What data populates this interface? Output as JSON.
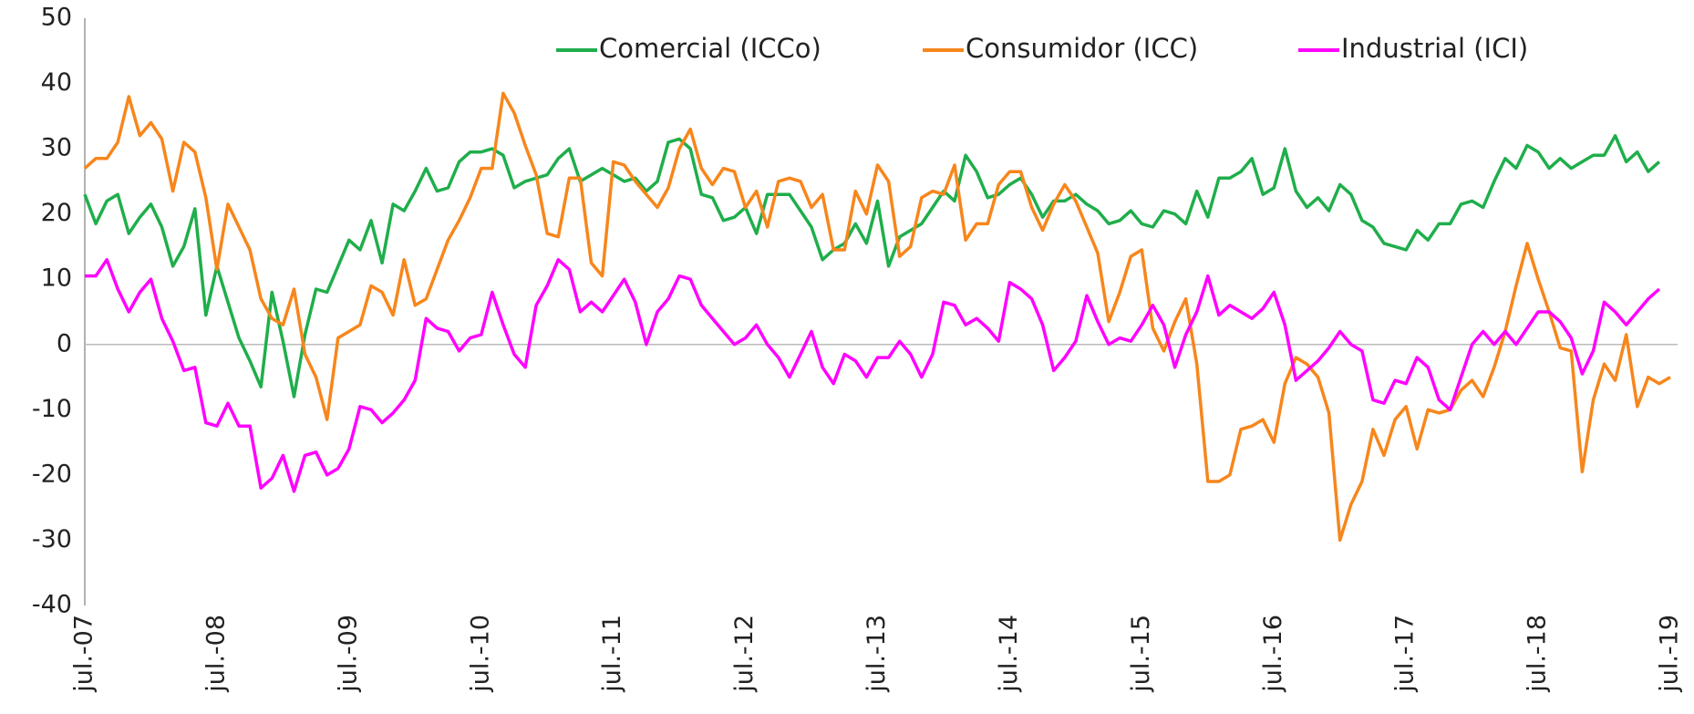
{
  "chart_data": {
    "type": "line",
    "categories": [
      "jul.-07",
      null,
      null,
      null,
      null,
      null,
      null,
      null,
      null,
      null,
      null,
      null,
      "jul.-08",
      null,
      null,
      null,
      null,
      null,
      null,
      null,
      null,
      null,
      null,
      null,
      "jul.-09",
      null,
      null,
      null,
      null,
      null,
      null,
      null,
      null,
      null,
      null,
      null,
      "jul.-10",
      null,
      null,
      null,
      null,
      null,
      null,
      null,
      null,
      null,
      null,
      null,
      "jul.-11",
      null,
      null,
      null,
      null,
      null,
      null,
      null,
      null,
      null,
      null,
      null,
      "jul.-12",
      null,
      null,
      null,
      null,
      null,
      null,
      null,
      null,
      null,
      null,
      null,
      "jul.-13",
      null,
      null,
      null,
      null,
      null,
      null,
      null,
      null,
      null,
      null,
      null,
      "jul.-14",
      null,
      null,
      null,
      null,
      null,
      null,
      null,
      null,
      null,
      null,
      null,
      "jul.-15",
      null,
      null,
      null,
      null,
      null,
      null,
      null,
      null,
      null,
      null,
      null,
      "jul.-16",
      null,
      null,
      null,
      null,
      null,
      null,
      null,
      null,
      null,
      null,
      null,
      "jul.-17",
      null,
      null,
      null,
      null,
      null,
      null,
      null,
      null,
      null,
      null,
      null,
      "jul.-18",
      null,
      null,
      null,
      null,
      null,
      null,
      null,
      null,
      null,
      null,
      null,
      "jul.-19"
    ],
    "series": [
      {
        "name": "Comercial (ICCo)",
        "color": "#1fae4b",
        "values": [
          23,
          18.5,
          22,
          23,
          17,
          19.5,
          21.5,
          18,
          12,
          15,
          20.8,
          4.5,
          12,
          6.5,
          1,
          -2.5,
          -6.5,
          8,
          0.5,
          -8,
          1.5,
          8.5,
          8,
          12,
          16,
          14.5,
          19,
          12.5,
          21.5,
          20.5,
          23.5,
          27,
          23.5,
          24,
          28,
          29.5,
          29.5,
          30,
          29,
          24,
          25,
          25.5,
          26,
          28.5,
          30,
          25,
          26,
          27,
          26,
          25,
          25.5,
          23.5,
          25,
          31,
          31.5,
          30,
          23,
          22.5,
          19,
          19.5,
          21,
          17,
          23,
          23,
          23,
          20.5,
          18,
          13,
          14.5,
          15.5,
          18.5,
          15.5,
          22,
          12,
          16.5,
          17.5,
          18.5,
          21,
          23.5,
          22,
          29,
          26.5,
          22.5,
          23,
          24.5,
          25.5,
          23,
          19.5,
          22,
          22,
          23,
          21.5,
          20.5,
          18.5,
          19,
          20.5,
          18.5,
          18,
          20.5,
          20,
          18.5,
          23.5,
          19.5,
          25.5,
          25.5,
          26.5,
          28.5,
          23,
          24,
          30,
          23.5,
          21,
          22.5,
          20.5,
          24.5,
          23,
          19,
          18,
          15.5,
          15,
          14.5,
          17.5,
          16,
          18.5,
          18.5,
          21.5,
          22,
          21,
          25,
          28.5,
          27,
          30.5,
          29.5,
          27,
          28.5,
          27,
          28,
          29,
          29,
          32,
          28,
          29.5,
          26.5,
          28,
          null
        ]
      },
      {
        "name": "Consumidor (ICC)",
        "color": "#f7861c",
        "values": [
          27,
          28.5,
          28.5,
          31,
          38,
          32,
          34,
          31.5,
          23.5,
          31,
          29.5,
          22.5,
          11.5,
          21.5,
          18,
          14.5,
          7,
          4,
          3,
          8.5,
          -1.5,
          -5,
          -11.5,
          1,
          2,
          3,
          9,
          8,
          4.5,
          13,
          6,
          7,
          11.5,
          16,
          19,
          22.5,
          27,
          27,
          38.5,
          35.5,
          30.5,
          26,
          17,
          16.5,
          25.5,
          25.5,
          12.5,
          10.5,
          28,
          27.5,
          25,
          23,
          21,
          24,
          30,
          33,
          27,
          24.5,
          27,
          26.5,
          21,
          23.5,
          18,
          25,
          25.5,
          25,
          21,
          23,
          14.5,
          14.5,
          23.5,
          20,
          27.5,
          25,
          13.5,
          15,
          22.5,
          23.5,
          23,
          27.5,
          16,
          18.5,
          18.5,
          24.5,
          26.5,
          26.5,
          21,
          17.5,
          21.5,
          24.5,
          22,
          18,
          14,
          3.5,
          8,
          13.5,
          14.5,
          2.5,
          -1,
          3.5,
          7,
          -3,
          -21,
          -21,
          -20,
          -13,
          -12.5,
          -11.5,
          -15,
          -6,
          -2,
          -3,
          -5,
          -10.5,
          -30,
          -24.5,
          -21,
          -13,
          -17,
          -11.5,
          -9.5,
          -16,
          -10,
          -10.5,
          -10,
          -7,
          -5.5,
          -8,
          -3.5,
          2,
          9,
          15.5,
          10,
          5,
          -0.5,
          -1,
          -19.5,
          -8.5,
          -3,
          -5.5,
          1.5,
          -9.5,
          -5,
          -6,
          -5
        ]
      },
      {
        "name": "Industrial (ICI)",
        "color": "#ff00ff",
        "values": [
          10.5,
          10.5,
          13,
          8.5,
          5,
          8,
          10,
          4,
          0.5,
          -4,
          -3.5,
          -12,
          -12.5,
          -9,
          -12.5,
          -12.5,
          -22,
          -20.5,
          -17,
          -22.5,
          -17,
          -16.5,
          -20,
          -19,
          -16,
          -9.5,
          -10,
          -12,
          -10.5,
          -8.5,
          -5.5,
          4,
          2.5,
          2,
          -1,
          1,
          1.5,
          8,
          3,
          -1.5,
          -3.5,
          6,
          9,
          13,
          11.5,
          5,
          6.5,
          5,
          7.5,
          10,
          6.5,
          0,
          5,
          7,
          10.5,
          10,
          6,
          4,
          2,
          0,
          1,
          3,
          0,
          -2,
          -5,
          -1.5,
          2,
          -3.5,
          -6,
          -1.5,
          -2.5,
          -5,
          -2,
          -2,
          0.5,
          -1.5,
          -5,
          -1.5,
          6.5,
          6,
          3,
          4,
          2.5,
          0.5,
          9.5,
          8.5,
          7,
          3,
          -4,
          -2,
          0.5,
          7.5,
          3.5,
          0,
          1,
          0.5,
          3,
          6,
          3,
          -3.5,
          1.5,
          5,
          10.5,
          4.5,
          6,
          5,
          4,
          5.5,
          8,
          3,
          -5.5,
          -4,
          -2.5,
          -0.5,
          2,
          0,
          -1,
          -8.5,
          -9,
          -5.5,
          -6,
          -2,
          -3.5,
          -8.5,
          -10,
          -5,
          0,
          2,
          0,
          2,
          0,
          2.5,
          5,
          5,
          3.5,
          1,
          -4.5,
          -1,
          6.5,
          5,
          3,
          5,
          7,
          8.5,
          null
        ]
      }
    ],
    "ylim": [
      -40,
      50
    ],
    "yticks": [
      -40,
      -30,
      -20,
      -10,
      0,
      10,
      20,
      30,
      40,
      50
    ],
    "grid": false,
    "legend": "top"
  }
}
